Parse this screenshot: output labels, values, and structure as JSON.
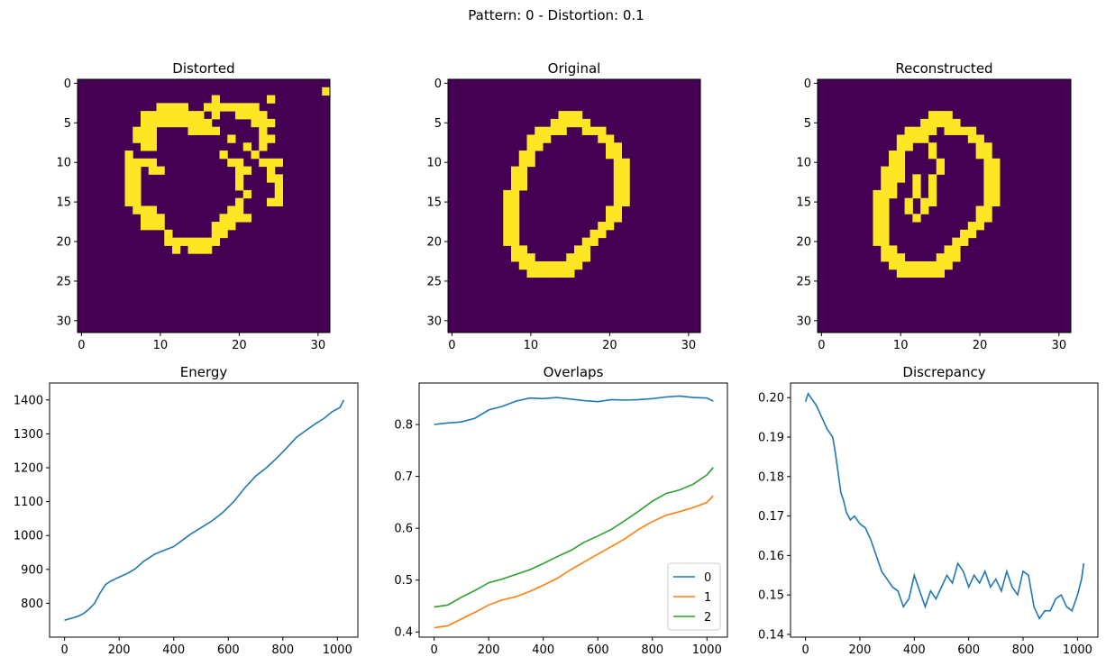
{
  "figure": {
    "suptitle": "Pattern: 0 - Distortion: 0.1"
  },
  "colors": {
    "yellow": "#fde725",
    "purple": "#440154",
    "blue": "#1f77b4",
    "orange": "#ff7f0e",
    "green": "#2ca02c"
  },
  "chart_data": [
    {
      "type": "heatmap",
      "title": "Distorted",
      "xticks": [
        0,
        10,
        20,
        30
      ],
      "yticks": [
        0,
        5,
        10,
        15,
        20,
        25,
        30
      ],
      "xlim": [
        -0.5,
        31.5
      ],
      "ylim": [
        31.5,
        -0.5
      ],
      "grid_size": 32,
      "rows": [
        "................................",
        "...............................#",
        ".................#......#.......",
        "..........####..#######.........",
        "........########.#..####........",
        "........#########.....###.......",
        ".......###....####.....#........",
        ".......###.........#...##.......",
        "........##...........#.#........",
        "......#...........#...#.........",
        "......####.........##..###......",
        "......##.##.........##..#.......",
        "......##............#...##......",
        "......##............#....#......",
        "......##.............#...#......",
        "......##............#...##......",
        ".......###.........##...........",
        "........###.......####..........",
        "........###......###............",
        "...........#.....##.............",
        "...........#######..............",
        "............#.###...............",
        "................................",
        "................................",
        "................................",
        "................................",
        "................................",
        "................................",
        "................................",
        "................................",
        "................................",
        "................................"
      ]
    },
    {
      "type": "heatmap",
      "title": "Original",
      "xticks": [
        0,
        10,
        20,
        30
      ],
      "yticks": [
        0,
        5,
        10,
        15,
        20,
        25,
        30
      ],
      "xlim": [
        -0.5,
        31.5
      ],
      "ylim": [
        31.5,
        -0.5
      ],
      "grid_size": 32,
      "rows": [
        "................................",
        "................................",
        "................................",
        "................................",
        "..............###...............",
        ".............#####...............",
        "...........####..###.............",
        "..........###......##............",
        "..........##........##...........",
        ".........##.........##...........",
        ".........##..........##..........",
        "........##...........##..........",
        "........##...........##..........",
        "........##...........##..........",
        ".......##............##..........",
        ".......##............##..........",
        ".......##...........##...........",
        ".......##...........##...........",
        ".......##..........##............",
        ".......##.........##.............",
        ".......##........##..............",
        "........##......##...............",
        "........###....###...............",
        ".........########................",
        "..........######.................",
        "................................",
        "................................",
        "................................",
        "................................",
        "................................",
        "................................",
        "................................"
      ]
    },
    {
      "type": "heatmap",
      "title": "Reconstructed",
      "xticks": [
        0,
        10,
        20,
        30
      ],
      "yticks": [
        0,
        5,
        10,
        15,
        20,
        25,
        30
      ],
      "xlim": [
        -0.5,
        31.5
      ],
      "ylim": [
        31.5,
        -0.5
      ],
      "grid_size": 32,
      "rows": [
        "................................",
        "................................",
        "................................",
        "................................",
        "..............###...............",
        ".............#####...............",
        "...........####.####.............",
        "..........####.....##............",
        "..........##..#.....##...........",
        ".........##...#.....##...........",
        ".........##....#.....##..........",
        "........###....#.....##..........",
        "........###.#.#......##..........",
        "........##..#.#......##..........",
        ".......###..#.#......##..........",
        ".......##..#.##......##..........",
        ".......##..#.#......##...........",
        ".......##...#.......##...........",
        ".......##..........##............",
        ".......##.........##.............",
        ".......##........##..............",
        "........##......##...............",
        "........###....###...............",
        ".........########................",
        "..........######.................",
        "................................",
        "................................",
        "................................",
        "................................",
        "................................",
        "................................",
        "................................"
      ]
    },
    {
      "type": "line",
      "title": "Energy",
      "xlim": [
        -55,
        1075
      ],
      "ylim": [
        700,
        1450
      ],
      "xticks": [
        0,
        200,
        400,
        600,
        800,
        1000
      ],
      "yticks": [
        800,
        900,
        1000,
        1100,
        1200,
        1300,
        1400
      ],
      "series": [
        {
          "color": "#1f77b4",
          "x": [
            0,
            30,
            50,
            70,
            90,
            110,
            130,
            150,
            170,
            200,
            230,
            260,
            290,
            330,
            370,
            400,
            430,
            460,
            500,
            540,
            580,
            620,
            660,
            700,
            740,
            780,
            810,
            850,
            890,
            920,
            950,
            980,
            1010,
            1023
          ],
          "y": [
            750,
            757,
            762,
            770,
            783,
            800,
            830,
            855,
            866,
            877,
            888,
            902,
            924,
            945,
            958,
            967,
            985,
            1003,
            1023,
            1043,
            1068,
            1100,
            1140,
            1175,
            1200,
            1230,
            1255,
            1290,
            1313,
            1330,
            1345,
            1365,
            1378,
            1400
          ]
        }
      ]
    },
    {
      "type": "line",
      "title": "Overlaps",
      "xlim": [
        -55,
        1075
      ],
      "ylim": [
        0.39,
        0.88
      ],
      "xticks": [
        0,
        200,
        400,
        600,
        800,
        1000
      ],
      "yticks": [
        0.4,
        0.5,
        0.6,
        0.7,
        0.8
      ],
      "legend": "lower right",
      "series": [
        {
          "name": "0",
          "color": "#1f77b4",
          "x": [
            0,
            50,
            100,
            150,
            200,
            250,
            300,
            350,
            400,
            450,
            500,
            550,
            600,
            650,
            700,
            750,
            800,
            850,
            900,
            950,
            1000,
            1023
          ],
          "y": [
            0.8,
            0.803,
            0.805,
            0.812,
            0.828,
            0.835,
            0.845,
            0.851,
            0.85,
            0.852,
            0.849,
            0.846,
            0.844,
            0.848,
            0.847,
            0.848,
            0.85,
            0.853,
            0.855,
            0.852,
            0.851,
            0.845
          ]
        },
        {
          "name": "1",
          "color": "#ff7f0e",
          "x": [
            0,
            50,
            100,
            150,
            200,
            250,
            300,
            350,
            400,
            450,
            500,
            550,
            600,
            650,
            700,
            750,
            800,
            850,
            900,
            950,
            1000,
            1023
          ],
          "y": [
            0.408,
            0.412,
            0.425,
            0.438,
            0.452,
            0.462,
            0.468,
            0.478,
            0.49,
            0.503,
            0.52,
            0.535,
            0.55,
            0.565,
            0.58,
            0.598,
            0.613,
            0.625,
            0.632,
            0.64,
            0.65,
            0.663
          ]
        },
        {
          "name": "2",
          "color": "#2ca02c",
          "x": [
            0,
            50,
            100,
            150,
            200,
            250,
            300,
            350,
            400,
            450,
            500,
            550,
            600,
            650,
            700,
            750,
            800,
            850,
            900,
            950,
            1000,
            1023
          ],
          "y": [
            0.448,
            0.452,
            0.467,
            0.48,
            0.495,
            0.502,
            0.511,
            0.52,
            0.532,
            0.545,
            0.557,
            0.573,
            0.585,
            0.598,
            0.615,
            0.633,
            0.652,
            0.667,
            0.674,
            0.685,
            0.703,
            0.717
          ]
        }
      ]
    },
    {
      "type": "line",
      "title": "Discrepancy",
      "xlim": [
        -55,
        1075
      ],
      "ylim": [
        0.1393,
        0.2037
      ],
      "xticks": [
        0,
        200,
        400,
        600,
        800,
        1000
      ],
      "yticks": [
        0.14,
        0.15,
        0.16,
        0.17,
        0.18,
        0.19,
        0.2
      ],
      "series": [
        {
          "color": "#1f77b4",
          "x": [
            0,
            10,
            20,
            40,
            60,
            80,
            100,
            110,
            120,
            130,
            140,
            150,
            165,
            180,
            200,
            220,
            240,
            260,
            280,
            300,
            320,
            340,
            360,
            380,
            400,
            420,
            440,
            460,
            480,
            500,
            520,
            540,
            560,
            580,
            600,
            620,
            640,
            660,
            680,
            700,
            720,
            740,
            760,
            780,
            800,
            820,
            840,
            860,
            880,
            900,
            920,
            940,
            960,
            980,
            1000,
            1015,
            1023
          ],
          "y": [
            0.199,
            0.201,
            0.2,
            0.198,
            0.195,
            0.192,
            0.19,
            0.186,
            0.181,
            0.176,
            0.174,
            0.171,
            0.169,
            0.17,
            0.168,
            0.167,
            0.164,
            0.16,
            0.156,
            0.154,
            0.152,
            0.151,
            0.147,
            0.149,
            0.155,
            0.151,
            0.147,
            0.151,
            0.149,
            0.152,
            0.155,
            0.153,
            0.158,
            0.156,
            0.152,
            0.155,
            0.153,
            0.156,
            0.152,
            0.154,
            0.151,
            0.156,
            0.152,
            0.15,
            0.156,
            0.155,
            0.147,
            0.144,
            0.146,
            0.146,
            0.149,
            0.15,
            0.147,
            0.146,
            0.15,
            0.154,
            0.158
          ]
        }
      ]
    }
  ]
}
